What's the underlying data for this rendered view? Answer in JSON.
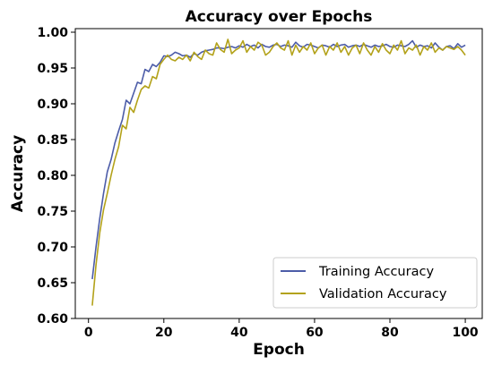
{
  "chart_data": {
    "type": "line",
    "title": "Accuracy over Epochs",
    "xlabel": "Epoch",
    "ylabel": "Accuracy",
    "xlim": [
      -3.5,
      104.5
    ],
    "ylim": [
      0.6,
      1.005
    ],
    "x_ticks": [
      0,
      20,
      40,
      60,
      80,
      100
    ],
    "y_ticks": [
      0.6,
      0.65,
      0.7,
      0.75,
      0.8,
      0.85,
      0.9,
      0.95,
      1.0
    ],
    "y_tick_labels": [
      "0.60",
      "0.65",
      "0.70",
      "0.75",
      "0.80",
      "0.85",
      "0.90",
      "0.95",
      "1.00"
    ],
    "legend_position": "lower-right",
    "grid": false,
    "x": [
      1,
      2,
      3,
      4,
      5,
      6,
      7,
      8,
      9,
      10,
      11,
      12,
      13,
      14,
      15,
      16,
      17,
      18,
      19,
      20,
      21,
      22,
      23,
      24,
      25,
      26,
      27,
      28,
      29,
      30,
      31,
      32,
      33,
      34,
      35,
      36,
      37,
      38,
      39,
      40,
      41,
      42,
      43,
      44,
      45,
      46,
      47,
      48,
      49,
      50,
      51,
      52,
      53,
      54,
      55,
      56,
      57,
      58,
      59,
      60,
      61,
      62,
      63,
      64,
      65,
      66,
      67,
      68,
      69,
      70,
      71,
      72,
      73,
      74,
      75,
      76,
      77,
      78,
      79,
      80,
      81,
      82,
      83,
      84,
      85,
      86,
      87,
      88,
      89,
      90,
      91,
      92,
      93,
      94,
      95,
      96,
      97,
      98,
      99,
      100
    ],
    "series": [
      {
        "name": "Training Accuracy",
        "color": "#4c5ca8",
        "values": [
          0.655,
          0.7,
          0.74,
          0.775,
          0.805,
          0.822,
          0.845,
          0.862,
          0.878,
          0.905,
          0.9,
          0.915,
          0.93,
          0.928,
          0.948,
          0.945,
          0.955,
          0.952,
          0.958,
          0.967,
          0.966,
          0.968,
          0.972,
          0.97,
          0.967,
          0.968,
          0.965,
          0.97,
          0.968,
          0.972,
          0.974,
          0.975,
          0.976,
          0.978,
          0.978,
          0.977,
          0.979,
          0.98,
          0.978,
          0.981,
          0.979,
          0.983,
          0.98,
          0.982,
          0.978,
          0.983,
          0.98,
          0.979,
          0.982,
          0.983,
          0.98,
          0.982,
          0.981,
          0.979,
          0.986,
          0.981,
          0.979,
          0.983,
          0.982,
          0.98,
          0.978,
          0.982,
          0.981,
          0.979,
          0.983,
          0.98,
          0.982,
          0.983,
          0.979,
          0.981,
          0.982,
          0.98,
          0.983,
          0.981,
          0.979,
          0.982,
          0.98,
          0.981,
          0.983,
          0.98,
          0.979,
          0.982,
          0.981,
          0.98,
          0.983,
          0.988,
          0.979,
          0.982,
          0.98,
          0.981,
          0.978,
          0.985,
          0.979,
          0.975,
          0.98,
          0.981,
          0.977,
          0.984,
          0.979,
          0.982
        ]
      },
      {
        "name": "Validation Accuracy",
        "color": "#b3a21a",
        "values": [
          0.618,
          0.675,
          0.72,
          0.752,
          0.775,
          0.8,
          0.822,
          0.84,
          0.87,
          0.865,
          0.895,
          0.888,
          0.905,
          0.92,
          0.925,
          0.922,
          0.938,
          0.935,
          0.955,
          0.962,
          0.968,
          0.962,
          0.96,
          0.965,
          0.962,
          0.968,
          0.96,
          0.972,
          0.966,
          0.962,
          0.975,
          0.97,
          0.968,
          0.985,
          0.976,
          0.972,
          0.99,
          0.97,
          0.975,
          0.978,
          0.988,
          0.972,
          0.98,
          0.975,
          0.986,
          0.982,
          0.968,
          0.972,
          0.98,
          0.985,
          0.978,
          0.975,
          0.988,
          0.968,
          0.982,
          0.972,
          0.98,
          0.975,
          0.985,
          0.97,
          0.978,
          0.982,
          0.968,
          0.98,
          0.975,
          0.985,
          0.972,
          0.98,
          0.968,
          0.978,
          0.982,
          0.97,
          0.985,
          0.975,
          0.968,
          0.98,
          0.972,
          0.984,
          0.975,
          0.97,
          0.982,
          0.975,
          0.988,
          0.97,
          0.978,
          0.975,
          0.982,
          0.968,
          0.98,
          0.975,
          0.985,
          0.972,
          0.978,
          0.975,
          0.98,
          0.978,
          0.976,
          0.98,
          0.975,
          0.968
        ]
      }
    ]
  }
}
